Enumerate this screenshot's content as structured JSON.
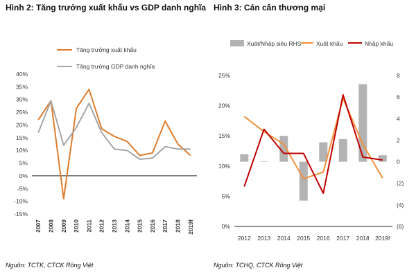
{
  "chart_data": [
    {
      "type": "line",
      "title": "Hình 2: Tăng trưởng xuất khẩu vs GDP danh nghĩa",
      "x": [
        "2007",
        "2008",
        "2009",
        "2010",
        "2011",
        "2012",
        "2013",
        "2014",
        "2015",
        "2016",
        "2017",
        "2018",
        "2019f"
      ],
      "ylim": [
        -15,
        40
      ],
      "yticks": [
        "-15%",
        "-10%",
        "-5%",
        "0%",
        "5%",
        "10%",
        "15%",
        "20%",
        "25%",
        "30%",
        "35%",
        "40%"
      ],
      "legend_position": "top",
      "series": [
        {
          "name": "Tăng trưởng xuất khẩu",
          "color": "#E07B2A",
          "values": [
            22,
            29.5,
            -9,
            26.5,
            34,
            18.5,
            15.5,
            13.5,
            8,
            9,
            21.5,
            12.5,
            8
          ]
        },
        {
          "name": "Tăng trưởng GDP danh nghĩa",
          "color": "#A6A6A6",
          "values": [
            17,
            29.5,
            12,
            19,
            28.5,
            17,
            10.5,
            10,
            6.5,
            7,
            11.5,
            10.5,
            10.5
          ]
        }
      ],
      "source": "Nguồn: TCTK, CTCK Rồng Việt"
    },
    {
      "type": "bar-line-combo",
      "title": "Hình 3: Cán cân thương mại",
      "x": [
        "2012",
        "2013",
        "2014",
        "2015",
        "2016",
        "2017",
        "2018",
        "2019f"
      ],
      "ylim_left": [
        0,
        25
      ],
      "yticks_left": [
        "0%",
        "5%",
        "10%",
        "15%",
        "20%",
        "25%"
      ],
      "ylim_right": [
        -6,
        8
      ],
      "yticks_right": [
        "(6)",
        "(4)",
        "(2)",
        "0",
        "2",
        "4",
        "6",
        "8"
      ],
      "legend_position": "top",
      "bars": {
        "name": "Xuất/Nhập siêu RHS",
        "color": "#B3B3B3",
        "axis": "right",
        "values": [
          0.7,
          0.05,
          2.4,
          -3.6,
          1.8,
          2.1,
          7.2,
          0.6
        ]
      },
      "series": [
        {
          "name": "Xuất khẩu",
          "color": "#F0913A",
          "axis": "left",
          "values": [
            18.2,
            15.7,
            13.6,
            7.9,
            9.0,
            21.2,
            13.6,
            8.0
          ]
        },
        {
          "name": "Nhập khẩu",
          "color": "#C00000",
          "axis": "left",
          "values": [
            6.6,
            16.1,
            12.1,
            12.1,
            5.5,
            21.8,
            11.5,
            11.0
          ]
        }
      ],
      "source": "Nguồn: TCHQ, CTCK Rồng Việt"
    }
  ]
}
